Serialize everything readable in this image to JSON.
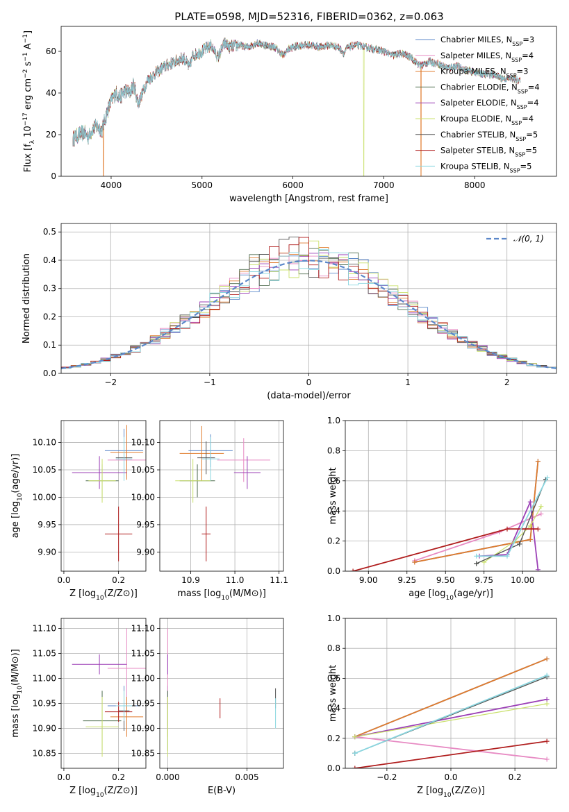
{
  "figure_title": "PLATE=0598, MJD=52316, FIBERID=0362, z=0.063",
  "series_colors": [
    "#5b87c9",
    "#e78ac3",
    "#e07b2c",
    "#4d6b4d",
    "#9b3fb6",
    "#c9e06b",
    "#555555",
    "#b01d1d",
    "#8ad6e0"
  ],
  "chart_data": [
    {
      "id": "spectrum",
      "type": "line",
      "title": "PLATE=0598, MJD=52316, FIBERID=0362, z=0.063",
      "xlabel": "wavelength [Angstrom, rest frame]",
      "ylabel": "Flux [f_λ 10^-17 erg cm^-2 s^-1 A^-1]",
      "xlim": [
        3450,
        8900
      ],
      "ylim": [
        0,
        72
      ],
      "xticks": [
        4000,
        5000,
        6000,
        7000,
        8000
      ],
      "yticks": [
        0,
        20,
        40,
        60
      ],
      "grid": false,
      "legend_position": "top-right",
      "x": [
        3580,
        3650,
        3700,
        3750,
        3800,
        3850,
        3900,
        3950,
        4000,
        4050,
        4100,
        4150,
        4200,
        4250,
        4300,
        4400,
        4500,
        4600,
        4700,
        4800,
        4861,
        4900,
        5000,
        5100,
        5175,
        5250,
        5300,
        5400,
        5500,
        5600,
        5700,
        5800,
        5893,
        5950,
        6000,
        6100,
        6200,
        6300,
        6400,
        6500,
        6563,
        6600,
        6700,
        6800,
        6900,
        7000,
        7100,
        7200,
        7300,
        7400,
        7500,
        7600,
        7700,
        7800,
        7900,
        8000,
        8100,
        8200,
        8300,
        8400,
        8500
      ],
      "flux": [
        18,
        20,
        21,
        19,
        23,
        24,
        22,
        30,
        36,
        40,
        38,
        41,
        40,
        44,
        35,
        46,
        50,
        53,
        55,
        57,
        52,
        58,
        60,
        63,
        57,
        64,
        62,
        63,
        62,
        64,
        63,
        62,
        58,
        61,
        62,
        63,
        63,
        62,
        63,
        62,
        59,
        62,
        63,
        62,
        61,
        60,
        58,
        59,
        57,
        53,
        55,
        54,
        52,
        53,
        51,
        50,
        49,
        49,
        47,
        47,
        46
      ],
      "series": [
        {
          "name": "Chabrier MILES, N_SSP=3",
          "name_main": "Chabrier MILES, N",
          "name_sub": "SSP",
          "name_tail": "=3"
        },
        {
          "name": "Salpeter MILES, N_SSP=4",
          "name_main": "Salpeter MILES, N",
          "name_sub": "SSP",
          "name_tail": "=4"
        },
        {
          "name": "Kroupa MILES, N_SSP=3",
          "name_main": "Kroupa MILES, N",
          "name_sub": "SSP",
          "name_tail": "=3"
        },
        {
          "name": "Chabrier ELODIE, N_SSP=4",
          "name_main": "Chabrier ELODIE, N",
          "name_sub": "SSP",
          "name_tail": "=4"
        },
        {
          "name": "Salpeter ELODIE, N_SSP=4",
          "name_main": "Salpeter ELODIE, N",
          "name_sub": "SSP",
          "name_tail": "=4"
        },
        {
          "name": "Kroupa ELODIE, N_SSP=4",
          "name_main": "Kroupa ELODIE, N",
          "name_sub": "SSP",
          "name_tail": "=4"
        },
        {
          "name": "Chabrier STELIB, N_SSP=5",
          "name_main": "Chabrier STELIB, N",
          "name_sub": "SSP",
          "name_tail": "=5"
        },
        {
          "name": "Salpeter STELIB, N_SSP=5",
          "name_main": "Salpeter STELIB, N",
          "name_sub": "SSP",
          "name_tail": "=5"
        },
        {
          "name": "Kroupa STELIB, N_SSP=5",
          "name_main": "Kroupa STELIB, N",
          "name_sub": "SSP",
          "name_tail": "=5"
        }
      ],
      "dips": [
        {
          "x": 3915,
          "series": 2
        },
        {
          "x": 6780,
          "series": 5
        },
        {
          "x": 7410,
          "series": 2
        }
      ]
    },
    {
      "id": "residuals",
      "type": "bar",
      "title": "",
      "xlabel": "(data-model)/error",
      "ylabel": "Normed distribution",
      "xlim": [
        -2.5,
        2.5
      ],
      "ylim": [
        0,
        0.53
      ],
      "xticks": [
        -2,
        -1,
        0,
        1,
        2
      ],
      "yticks": [
        0.0,
        0.1,
        0.2,
        0.3,
        0.4,
        0.5
      ],
      "grid": true,
      "legend_position": "top-right",
      "reference_curve": {
        "name": "N(0,1)",
        "label_main": "𝒩(0, 1)",
        "mean": 0,
        "sigma": 1
      },
      "bin_width": 0.1
    },
    {
      "id": "age_vs_Z",
      "type": "scatter",
      "xlabel": "Z [log10(Z/Z⊙)]",
      "ylabel": "age  [log10(age/yr)]",
      "xlim": [
        -0.01,
        0.3
      ],
      "ylim": [
        9.865,
        10.14
      ],
      "xticks": [
        0.0,
        0.2
      ],
      "yticks": [
        9.9,
        9.95,
        10.0,
        10.05,
        10.1
      ],
      "grid": true,
      "points": [
        {
          "x": 0.22,
          "y": 10.085,
          "xerr": 0.07,
          "yerr": 0.04
        },
        {
          "x": 0.23,
          "y": 10.068,
          "xerr": 0.07,
          "yerr": 0.03
        },
        {
          "x": 0.23,
          "y": 10.082,
          "xerr": 0.06,
          "yerr": 0.05
        },
        {
          "x": 0.14,
          "y": 10.03,
          "xerr": 0.06,
          "yerr": 0.03
        },
        {
          "x": 0.13,
          "y": 10.045,
          "xerr": 0.1,
          "yerr": 0.03
        },
        {
          "x": 0.14,
          "y": 10.03,
          "xerr": 0.05,
          "yerr": 0.04
        },
        {
          "x": 0.22,
          "y": 10.072,
          "xerr": 0.03,
          "yerr": 0.03
        },
        {
          "x": 0.2,
          "y": 9.933,
          "xerr": 0.05,
          "yerr": 0.05
        },
        {
          "x": 0.22,
          "y": 10.07,
          "xerr": 0.03,
          "yerr": 0.04
        }
      ]
    },
    {
      "id": "age_vs_mass",
      "type": "scatter",
      "xlabel": "mass [log10(M/M⊙)]",
      "ylabel": "",
      "xlim": [
        10.83,
        11.11
      ],
      "ylim": [
        9.865,
        10.14
      ],
      "xticks": [
        10.9,
        11.0,
        11.1
      ],
      "yticks": [
        9.9,
        9.95,
        10.0,
        10.05,
        10.1
      ],
      "grid": true,
      "points": [
        {
          "x": 10.945,
          "y": 10.085,
          "xerr": 0.05,
          "yerr": 0.03
        },
        {
          "x": 11.02,
          "y": 10.068,
          "xerr": 0.06,
          "yerr": 0.04
        },
        {
          "x": 10.925,
          "y": 10.08,
          "xerr": 0.05,
          "yerr": 0.05
        },
        {
          "x": 10.915,
          "y": 10.03,
          "xerr": 0.04,
          "yerr": 0.03
        },
        {
          "x": 11.028,
          "y": 10.045,
          "xerr": 0.03,
          "yerr": 0.03
        },
        {
          "x": 10.905,
          "y": 10.03,
          "xerr": 0.04,
          "yerr": 0.04
        },
        {
          "x": 10.935,
          "y": 10.072,
          "xerr": 0.02,
          "yerr": 0.03
        },
        {
          "x": 10.935,
          "y": 9.933,
          "xerr": 0.01,
          "yerr": 0.05
        },
        {
          "x": 10.945,
          "y": 10.07,
          "xerr": 0.02,
          "yerr": 0.04
        }
      ]
    },
    {
      "id": "weight_vs_age",
      "type": "line",
      "xlabel": "age  [log10(age/yr)]",
      "ylabel": "mass weight",
      "xlim": [
        8.85,
        10.22
      ],
      "ylim": [
        0.0,
        1.0
      ],
      "xticks": [
        9.0,
        9.25,
        9.5,
        9.75,
        10.0
      ],
      "yticks": [
        0.0,
        0.2,
        0.4,
        0.6,
        0.8,
        1.0
      ],
      "grid": true,
      "series": [
        {
          "x": [
            9.3,
            10.05,
            10.1
          ],
          "y": [
            0.06,
            0.21,
            0.73
          ]
        },
        {
          "x": [
            9.3,
            9.85,
            10.12
          ],
          "y": [
            0.07,
            0.26,
            0.38
          ]
        },
        {
          "x": [
            9.3,
            10.05,
            10.1
          ],
          "y": [
            0.06,
            0.21,
            0.73
          ]
        },
        {
          "x": [
            9.7,
            9.98,
            10.15
          ],
          "y": [
            0.05,
            0.18,
            0.61
          ]
        },
        {
          "x": [
            9.72,
            9.9,
            10.05,
            10.1
          ],
          "y": [
            0.1,
            0.11,
            0.46,
            0.01
          ]
        },
        {
          "x": [
            9.75,
            9.95,
            10.05,
            10.12
          ],
          "y": [
            0.06,
            0.2,
            0.3,
            0.43
          ]
        },
        {
          "x": [
            9.7,
            9.98,
            10.15
          ],
          "y": [
            0.05,
            0.18,
            0.61
          ]
        },
        {
          "x": [
            8.9,
            9.9,
            10.1
          ],
          "y": [
            0.0,
            0.28,
            0.28
          ]
        },
        {
          "x": [
            9.7,
            9.9,
            10.16
          ],
          "y": [
            0.1,
            0.1,
            0.62
          ]
        }
      ]
    },
    {
      "id": "mass_vs_Z",
      "type": "scatter",
      "xlabel": "Z [log10(Z/Z⊙)]",
      "ylabel": "mass [log10(M/M⊙)]",
      "xlim": [
        -0.01,
        0.3
      ],
      "ylim": [
        10.82,
        11.12
      ],
      "xticks": [
        0.0,
        0.2
      ],
      "yticks": [
        10.85,
        10.9,
        10.95,
        11.0,
        11.05,
        11.1
      ],
      "grid": true,
      "points": [
        {
          "x": 0.22,
          "y": 10.945,
          "xerr": 0.06,
          "yerr": 0.04
        },
        {
          "x": 0.23,
          "y": 11.02,
          "xerr": 0.07,
          "yerr": 0.08
        },
        {
          "x": 0.23,
          "y": 10.923,
          "xerr": 0.06,
          "yerr": 0.04
        },
        {
          "x": 0.14,
          "y": 10.915,
          "xerr": 0.07,
          "yerr": 0.06
        },
        {
          "x": 0.13,
          "y": 11.028,
          "xerr": 0.1,
          "yerr": 0.02
        },
        {
          "x": 0.14,
          "y": 10.903,
          "xerr": 0.06,
          "yerr": 0.06
        },
        {
          "x": 0.22,
          "y": 10.935,
          "xerr": 0.02,
          "yerr": 0.04
        },
        {
          "x": 0.2,
          "y": 10.933,
          "xerr": 0.05,
          "yerr": 0.02
        },
        {
          "x": 0.22,
          "y": 10.945,
          "xerr": 0.03,
          "yerr": 0.03
        }
      ]
    },
    {
      "id": "mass_vs_ebv",
      "type": "scatter",
      "xlabel": "E(B-V)",
      "ylabel": "",
      "xlim": [
        -0.0005,
        0.0073
      ],
      "ylim": [
        10.82,
        11.12
      ],
      "xticks": [
        0.0,
        0.005
      ],
      "yticks": [
        10.85,
        10.9,
        10.95,
        11.0,
        11.05,
        11.1
      ],
      "grid": true,
      "points": [
        {
          "x": 0.0,
          "y": 10.945,
          "xerr": 0,
          "yerr": 0.04
        },
        {
          "x": 0.0,
          "y": 11.02,
          "xerr": 0,
          "yerr": 0.08
        },
        {
          "x": 0.0,
          "y": 10.923,
          "xerr": 0,
          "yerr": 0.04
        },
        {
          "x": 0.0,
          "y": 10.915,
          "xerr": 0,
          "yerr": 0.06
        },
        {
          "x": 0.0,
          "y": 11.028,
          "xerr": 0,
          "yerr": 0.02
        },
        {
          "x": 0.0,
          "y": 10.903,
          "xerr": 0,
          "yerr": 0.06
        },
        {
          "x": 0.0068,
          "y": 10.96,
          "xerr": 0,
          "yerr": 0.02
        },
        {
          "x": 0.0033,
          "y": 10.94,
          "xerr": 0,
          "yerr": 0.02
        },
        {
          "x": 0.0068,
          "y": 10.93,
          "xerr": 0,
          "yerr": 0.03
        }
      ]
    },
    {
      "id": "weight_vs_Z",
      "type": "line",
      "xlabel": "Z [log10(Z/Z⊙)]",
      "ylabel": "mass weight",
      "xlim": [
        -0.33,
        0.33
      ],
      "ylim": [
        0.0,
        1.0
      ],
      "xticks": [
        -0.2,
        0.0,
        0.2
      ],
      "yticks": [
        0.0,
        0.2,
        0.4,
        0.6,
        0.8,
        1.0
      ],
      "grid": true,
      "series": [
        {
          "x": [
            -0.3,
            0.3
          ],
          "y": [
            0.21,
            0.73
          ]
        },
        {
          "x": [
            -0.3,
            0.3
          ],
          "y": [
            0.21,
            0.06
          ]
        },
        {
          "x": [
            -0.3,
            0.3
          ],
          "y": [
            0.21,
            0.73
          ]
        },
        {
          "x": [
            -0.3,
            0.3
          ],
          "y": [
            0.1,
            0.61
          ]
        },
        {
          "x": [
            -0.3,
            0.3
          ],
          "y": [
            0.21,
            0.46
          ]
        },
        {
          "x": [
            -0.3,
            0.3
          ],
          "y": [
            0.21,
            0.43
          ]
        },
        {
          "x": [
            -0.3,
            0.3
          ],
          "y": [
            0.1,
            0.61
          ]
        },
        {
          "x": [
            -0.3,
            0.3
          ],
          "y": [
            0.0,
            0.18
          ]
        },
        {
          "x": [
            -0.3,
            0.3
          ],
          "y": [
            0.1,
            0.62
          ]
        }
      ]
    }
  ]
}
